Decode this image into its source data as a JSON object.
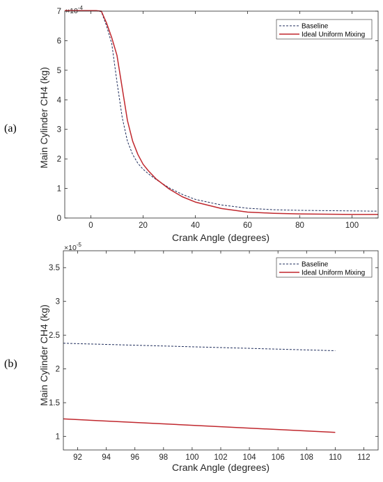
{
  "chart_data": [
    {
      "type": "line",
      "panel_label": "(a)",
      "xlabel": "Crank Angle (degrees)",
      "ylabel": "Main Cylinder CH4 (kg)",
      "y_multiplier": "×10",
      "y_exponent": "-4",
      "xlim": [
        -10,
        110
      ],
      "ylim": [
        0,
        7
      ],
      "xticks": [
        0,
        20,
        40,
        60,
        80,
        100
      ],
      "yticks": [
        0,
        1,
        2,
        3,
        4,
        5,
        6,
        7
      ],
      "grid": false,
      "legend_position": "top-right",
      "series": [
        {
          "name": "Baseline",
          "color": "#1f2d5c",
          "style": "dashed",
          "x": [
            -10,
            0,
            2,
            4,
            6,
            8,
            10,
            12,
            14,
            16,
            18,
            20,
            22,
            25,
            30,
            35,
            40,
            50,
            60,
            70,
            80,
            90,
            100,
            110
          ],
          "y": [
            7.02,
            7.02,
            7.02,
            6.98,
            6.5,
            5.9,
            4.6,
            3.4,
            2.6,
            2.15,
            1.85,
            1.65,
            1.5,
            1.3,
            1.02,
            0.8,
            0.63,
            0.44,
            0.33,
            0.28,
            0.26,
            0.25,
            0.24,
            0.23
          ]
        },
        {
          "name": "Ideal Uniform Mixing",
          "color": "#c0272d",
          "style": "solid",
          "x": [
            -10,
            0,
            2,
            4,
            6,
            8,
            10,
            12,
            14,
            16,
            18,
            20,
            22,
            25,
            30,
            35,
            40,
            50,
            60,
            70,
            80,
            90,
            100,
            110
          ],
          "y": [
            7.02,
            7.02,
            7.02,
            7.0,
            6.6,
            6.1,
            5.5,
            4.4,
            3.3,
            2.6,
            2.15,
            1.82,
            1.6,
            1.32,
            0.98,
            0.72,
            0.54,
            0.32,
            0.2,
            0.16,
            0.14,
            0.13,
            0.12,
            0.12
          ]
        }
      ]
    },
    {
      "type": "line",
      "panel_label": "(b)",
      "xlabel": "Crank Angle (degrees)",
      "ylabel": "Main Cylinder CH4 (kg)",
      "y_multiplier": "×10",
      "y_exponent": "-5",
      "xlim": [
        91,
        113
      ],
      "ylim": [
        0.8,
        3.75
      ],
      "xticks": [
        92,
        94,
        96,
        98,
        100,
        102,
        104,
        106,
        108,
        110,
        112
      ],
      "yticks": [
        1,
        1.5,
        2,
        2.5,
        3,
        3.5
      ],
      "grid": false,
      "legend_position": "top-right",
      "series": [
        {
          "name": "Baseline",
          "color": "#1f2d5c",
          "style": "dashed",
          "x": [
            91,
            110
          ],
          "y": [
            2.38,
            2.27
          ]
        },
        {
          "name": "Ideal Uniform Mixing",
          "color": "#c0272d",
          "style": "solid",
          "x": [
            91,
            110
          ],
          "y": [
            1.26,
            1.06
          ]
        }
      ]
    }
  ]
}
